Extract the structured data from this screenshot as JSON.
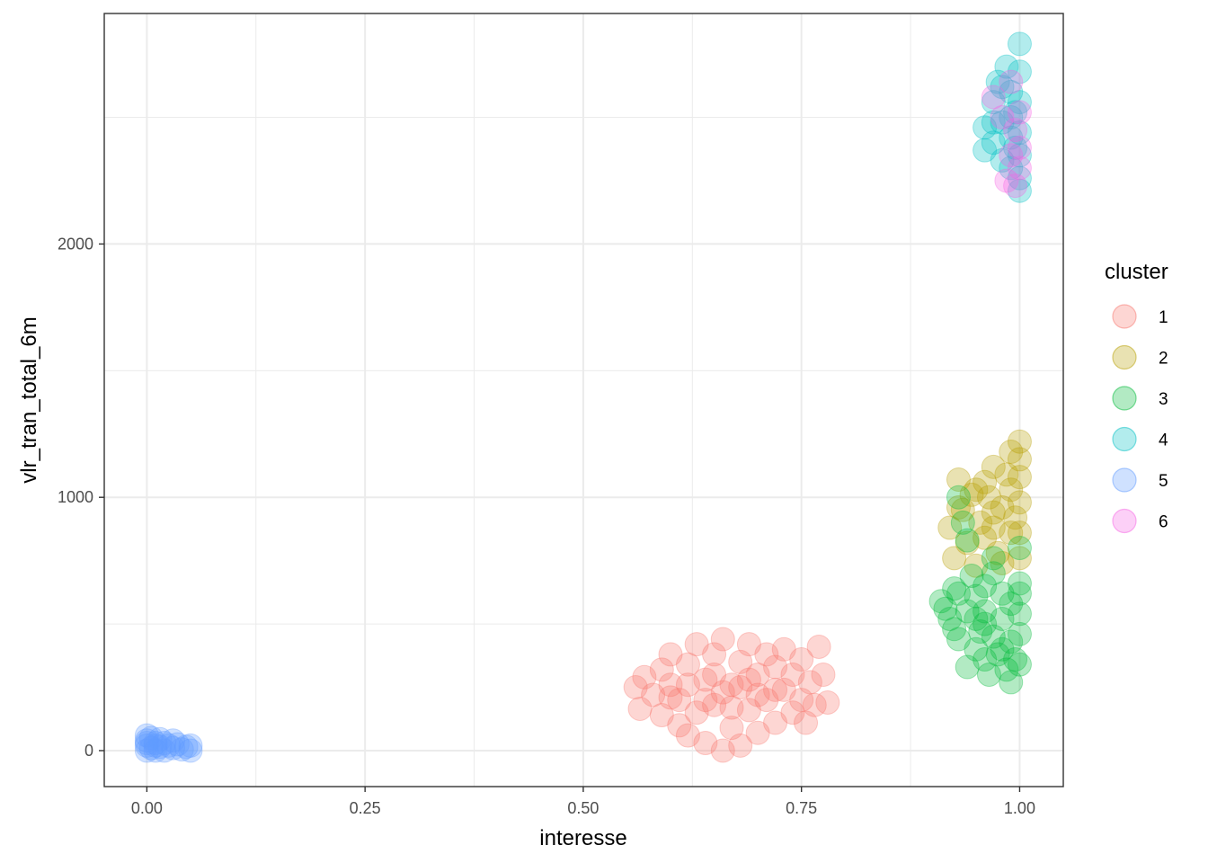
{
  "chart_data": {
    "type": "scatter",
    "title": "",
    "xlabel": "interesse",
    "ylabel": "vlr_tran_total_6m",
    "xlim": [
      -0.0488,
      1.05
    ],
    "ylim": [
      -142,
      2910
    ],
    "x_ticks": [
      0.0,
      0.25,
      0.5,
      0.75,
      1.0
    ],
    "x_tick_labels": [
      "0.00",
      "0.25",
      "0.50",
      "0.75",
      "1.00"
    ],
    "y_ticks": [
      0,
      1000,
      2000
    ],
    "y_tick_labels": [
      "0",
      "1000",
      "2000"
    ],
    "grid": true,
    "legend": {
      "title": "cluster",
      "position": "right"
    },
    "point_alpha": 0.3,
    "series": [
      {
        "name": "1",
        "color": "#F8766D",
        "points": [
          [
            0.56,
            250
          ],
          [
            0.565,
            165
          ],
          [
            0.57,
            290
          ],
          [
            0.58,
            220
          ],
          [
            0.59,
            320
          ],
          [
            0.59,
            140
          ],
          [
            0.6,
            260
          ],
          [
            0.6,
            380
          ],
          [
            0.61,
            100
          ],
          [
            0.61,
            200
          ],
          [
            0.62,
            340
          ],
          [
            0.62,
            60
          ],
          [
            0.63,
            420
          ],
          [
            0.63,
            150
          ],
          [
            0.64,
            280
          ],
          [
            0.64,
            30
          ],
          [
            0.65,
            380
          ],
          [
            0.65,
            180
          ],
          [
            0.66,
            0
          ],
          [
            0.66,
            440
          ],
          [
            0.67,
            260
          ],
          [
            0.67,
            90
          ],
          [
            0.68,
            350
          ],
          [
            0.68,
            20
          ],
          [
            0.69,
            420
          ],
          [
            0.69,
            160
          ],
          [
            0.7,
            300
          ],
          [
            0.7,
            70
          ],
          [
            0.71,
            380
          ],
          [
            0.71,
            200
          ],
          [
            0.72,
            110
          ],
          [
            0.72,
            330
          ],
          [
            0.73,
            240
          ],
          [
            0.73,
            400
          ],
          [
            0.74,
            150
          ],
          [
            0.74,
            300
          ],
          [
            0.75,
            200
          ],
          [
            0.75,
            360
          ],
          [
            0.755,
            110
          ],
          [
            0.76,
            270
          ],
          [
            0.765,
            180
          ],
          [
            0.77,
            410
          ],
          [
            0.775,
            300
          ],
          [
            0.78,
            190
          ],
          [
            0.64,
            200
          ],
          [
            0.66,
            230
          ],
          [
            0.68,
            250
          ],
          [
            0.7,
            220
          ],
          [
            0.62,
            260
          ],
          [
            0.72,
            240
          ],
          [
            0.6,
            210
          ],
          [
            0.67,
            170
          ],
          [
            0.65,
            300
          ],
          [
            0.69,
            280
          ]
        ]
      },
      {
        "name": "2",
        "color": "#B79F00",
        "points": [
          [
            0.92,
            880
          ],
          [
            0.925,
            760
          ],
          [
            0.93,
            1070
          ],
          [
            0.935,
            950
          ],
          [
            0.94,
            820
          ],
          [
            0.945,
            1010
          ],
          [
            0.95,
            730
          ],
          [
            0.955,
            900
          ],
          [
            0.96,
            1060
          ],
          [
            0.965,
            1000
          ],
          [
            0.97,
            880
          ],
          [
            0.97,
            1120
          ],
          [
            0.975,
            780
          ],
          [
            0.98,
            960
          ],
          [
            0.98,
            740
          ],
          [
            0.985,
            1090
          ],
          [
            0.99,
            860
          ],
          [
            0.99,
            1030
          ],
          [
            0.995,
            920
          ],
          [
            1.0,
            1220
          ],
          [
            1.0,
            1150
          ],
          [
            1.0,
            1080
          ],
          [
            1.0,
            980
          ],
          [
            1.0,
            860
          ],
          [
            1.0,
            760
          ],
          [
            0.96,
            840
          ],
          [
            0.97,
            940
          ],
          [
            0.99,
            1180
          ],
          [
            0.95,
            1030
          ],
          [
            0.93,
            960
          ]
        ]
      },
      {
        "name": "3",
        "color": "#00BA38",
        "points": [
          [
            0.91,
            590
          ],
          [
            0.915,
            560
          ],
          [
            0.92,
            520
          ],
          [
            0.925,
            480
          ],
          [
            0.925,
            640
          ],
          [
            0.93,
            440
          ],
          [
            0.93,
            620
          ],
          [
            0.94,
            330
          ],
          [
            0.94,
            550
          ],
          [
            0.945,
            690
          ],
          [
            0.95,
            400
          ],
          [
            0.95,
            610
          ],
          [
            0.955,
            470
          ],
          [
            0.96,
            360
          ],
          [
            0.96,
            550
          ],
          [
            0.96,
            650
          ],
          [
            0.965,
            300
          ],
          [
            0.97,
            450
          ],
          [
            0.97,
            700
          ],
          [
            0.975,
            380
          ],
          [
            0.98,
            520
          ],
          [
            0.98,
            620
          ],
          [
            0.985,
            320
          ],
          [
            0.99,
            270
          ],
          [
            0.99,
            430
          ],
          [
            0.99,
            580
          ],
          [
            0.995,
            360
          ],
          [
            1.0,
            340
          ],
          [
            1.0,
            460
          ],
          [
            1.0,
            540
          ],
          [
            1.0,
            620
          ],
          [
            1.0,
            660
          ],
          [
            0.93,
            1000
          ],
          [
            0.935,
            900
          ],
          [
            0.94,
            830
          ],
          [
            1.0,
            800
          ],
          [
            0.97,
            760
          ],
          [
            0.96,
            500
          ],
          [
            0.98,
            400
          ],
          [
            0.95,
            520
          ]
        ]
      },
      {
        "name": "4",
        "color": "#00BFC4",
        "points": [
          [
            1.0,
            2790
          ],
          [
            0.96,
            2460
          ],
          [
            0.96,
            2370
          ],
          [
            0.97,
            2400
          ],
          [
            0.97,
            2560
          ],
          [
            0.975,
            2640
          ],
          [
            0.98,
            2480
          ],
          [
            0.98,
            2330
          ],
          [
            0.985,
            2700
          ],
          [
            0.99,
            2600
          ],
          [
            0.99,
            2420
          ],
          [
            0.99,
            2300
          ],
          [
            0.995,
            2520
          ],
          [
            1.0,
            2680
          ],
          [
            1.0,
            2560
          ],
          [
            1.0,
            2440
          ],
          [
            1.0,
            2350
          ],
          [
            1.0,
            2260
          ],
          [
            1.0,
            2210
          ],
          [
            0.99,
            2500
          ],
          [
            0.98,
            2620
          ],
          [
            0.97,
            2480
          ],
          [
            0.995,
            2380
          ]
        ]
      },
      {
        "name": "5",
        "color": "#619CFF",
        "points": [
          [
            0.0,
            60
          ],
          [
            0.0,
            40
          ],
          [
            0.0,
            20
          ],
          [
            0.0,
            0
          ],
          [
            0.005,
            50
          ],
          [
            0.005,
            10
          ],
          [
            0.01,
            30
          ],
          [
            0.01,
            0
          ],
          [
            0.015,
            45
          ],
          [
            0.015,
            15
          ],
          [
            0.02,
            30
          ],
          [
            0.02,
            0
          ],
          [
            0.025,
            20
          ],
          [
            0.03,
            40
          ],
          [
            0.03,
            10
          ],
          [
            0.035,
            25
          ],
          [
            0.04,
            5
          ],
          [
            0.045,
            15
          ],
          [
            0.05,
            20
          ],
          [
            0.05,
            0
          ],
          [
            0.01,
            20
          ],
          [
            0.0,
            30
          ]
        ]
      },
      {
        "name": "6",
        "color": "#F564E3",
        "points": [
          [
            0.985,
            2250
          ],
          [
            0.99,
            2350
          ],
          [
            0.995,
            2230
          ],
          [
            1.0,
            2300
          ],
          [
            1.0,
            2380
          ],
          [
            0.98,
            2500
          ],
          [
            0.99,
            2640
          ],
          [
            0.97,
            2580
          ],
          [
            0.995,
            2450
          ],
          [
            1.0,
            2520
          ]
        ]
      }
    ]
  }
}
